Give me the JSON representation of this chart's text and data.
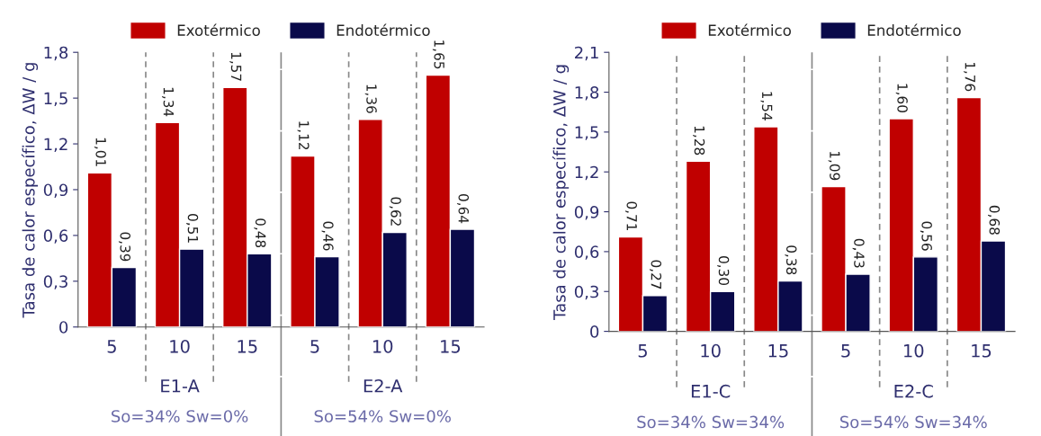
{
  "chart_data": [
    {
      "type": "bar",
      "ylabel": "Tasa de calor específico, ΔW / g",
      "categories": [
        "5",
        "10",
        "15",
        "5",
        "10",
        "15"
      ],
      "series": [
        {
          "name": "Exotérmico",
          "color": "#c00000",
          "values": [
            1.01,
            1.34,
            1.57,
            1.12,
            1.36,
            1.65
          ],
          "value_labels": [
            "1,01",
            "1,34",
            "1,57",
            "1,12",
            "1,36",
            "1,65"
          ]
        },
        {
          "name": "Endotérmico",
          "color": "#0a0a4a",
          "values": [
            0.39,
            0.51,
            0.48,
            0.46,
            0.62,
            0.64
          ],
          "value_labels": [
            "0,39",
            "0,51",
            "0,48",
            "0,46",
            "0,62",
            "0,64"
          ]
        }
      ],
      "ylim": [
        0,
        1.8
      ],
      "yticks": [
        0,
        {
          "value": 0.3,
          "label": "0,3"
        },
        {
          "value": 0.6,
          "label": "0,6"
        },
        {
          "value": 0.9,
          "label": "0,9"
        },
        {
          "value": 1.2,
          "label": "1,2"
        },
        {
          "value": 1.5,
          "label": "1,5"
        },
        {
          "value": 1.8,
          "label": "1,8"
        }
      ],
      "annotations": [
        "E1-A",
        "So=34% Sw=0%",
        "E2-A",
        "So=54% Sw=0%"
      ],
      "legend": "top",
      "grid": "x"
    },
    {
      "type": "bar",
      "ylabel": "Tasa de calor específico, ΔW / g",
      "categories": [
        "5",
        "10",
        "15",
        "5",
        "10",
        "15"
      ],
      "series": [
        {
          "name": "Exotérmico",
          "color": "#c00000",
          "values": [
            0.71,
            1.28,
            1.54,
            1.09,
            1.6,
            1.76
          ],
          "value_labels": [
            "0,71",
            "1,28",
            "1,54",
            "1,09",
            "1,60",
            "1,76"
          ]
        },
        {
          "name": "Endotérmico",
          "color": "#0a0a4a",
          "values": [
            0.27,
            0.3,
            0.38,
            0.43,
            0.56,
            0.68
          ],
          "value_labels": [
            "0,27",
            "0,30",
            "0,38",
            "0,43",
            "0,56",
            "0,68"
          ]
        }
      ],
      "ylim": [
        0,
        2.1
      ],
      "yticks": [
        0,
        {
          "value": 0.3,
          "label": "0,3"
        },
        {
          "value": 0.6,
          "label": "0,6"
        },
        {
          "value": 0.9,
          "label": "0,9"
        },
        {
          "value": 1.2,
          "label": "1,2"
        },
        {
          "value": 1.5,
          "label": "1,5"
        },
        {
          "value": 1.8,
          "label": "1,8"
        },
        {
          "value": 2.1,
          "label": "2,1"
        }
      ],
      "annotations": [
        "E1-C",
        "So=34% Sw=34%",
        "E2-C",
        "So=54% Sw=34%"
      ],
      "legend": "top",
      "grid": "x"
    }
  ]
}
